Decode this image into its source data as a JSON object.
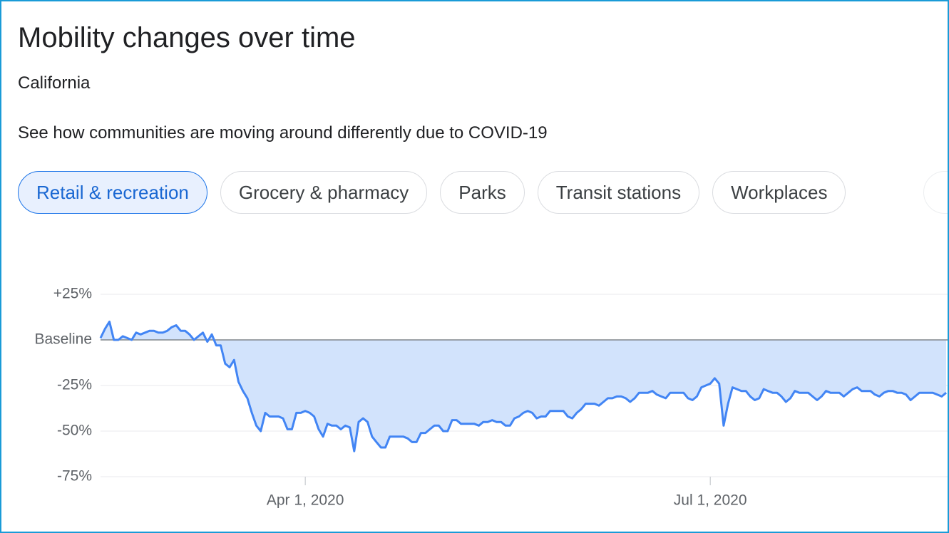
{
  "header": {
    "title": "Mobility changes over time",
    "subtitle": "California",
    "description": "See how communities are moving around differently due to COVID-19"
  },
  "tabs": [
    {
      "label": "Retail & recreation",
      "selected": true
    },
    {
      "label": "Grocery & pharmacy",
      "selected": false
    },
    {
      "label": "Parks",
      "selected": false
    },
    {
      "label": "Transit stations",
      "selected": false
    },
    {
      "label": "Workplaces",
      "selected": false
    }
  ],
  "chart_data": {
    "type": "line",
    "color": "#4285f4",
    "fill_color": "#d2e3fc",
    "x": [
      "2020-02-15",
      "2020-02-16",
      "2020-02-17",
      "2020-02-18",
      "2020-02-19",
      "2020-02-20",
      "2020-02-21",
      "2020-02-22",
      "2020-02-23",
      "2020-02-24",
      "2020-02-25",
      "2020-02-26",
      "2020-02-27",
      "2020-02-28",
      "2020-02-29",
      "2020-03-01",
      "2020-03-02",
      "2020-03-03",
      "2020-03-04",
      "2020-03-05",
      "2020-03-06",
      "2020-03-07",
      "2020-03-08",
      "2020-03-09",
      "2020-03-10",
      "2020-03-11",
      "2020-03-12",
      "2020-03-13",
      "2020-03-14",
      "2020-03-15",
      "2020-03-16",
      "2020-03-17",
      "2020-03-18",
      "2020-03-19",
      "2020-03-20",
      "2020-03-21",
      "2020-03-22",
      "2020-03-23",
      "2020-03-24",
      "2020-03-25",
      "2020-03-26",
      "2020-03-27",
      "2020-03-28",
      "2020-03-29",
      "2020-03-30",
      "2020-03-31",
      "2020-04-01",
      "2020-04-02",
      "2020-04-03",
      "2020-04-04",
      "2020-04-05",
      "2020-04-06",
      "2020-04-07",
      "2020-04-08",
      "2020-04-09",
      "2020-04-10",
      "2020-04-11",
      "2020-04-12",
      "2020-04-13",
      "2020-04-14",
      "2020-04-15",
      "2020-04-16",
      "2020-04-17",
      "2020-04-18",
      "2020-04-19",
      "2020-04-20",
      "2020-04-21",
      "2020-04-22",
      "2020-04-23",
      "2020-04-24",
      "2020-04-25",
      "2020-04-26",
      "2020-04-27",
      "2020-04-28",
      "2020-04-29",
      "2020-04-30",
      "2020-05-01",
      "2020-05-02",
      "2020-05-03",
      "2020-05-04",
      "2020-05-05",
      "2020-05-06",
      "2020-05-07",
      "2020-05-08",
      "2020-05-09",
      "2020-05-10",
      "2020-05-11",
      "2020-05-12",
      "2020-05-13",
      "2020-05-14",
      "2020-05-15",
      "2020-05-16",
      "2020-05-17",
      "2020-05-18",
      "2020-05-19",
      "2020-05-20",
      "2020-05-21",
      "2020-05-22",
      "2020-05-23",
      "2020-05-24",
      "2020-05-25",
      "2020-05-26",
      "2020-05-27",
      "2020-05-28",
      "2020-05-29",
      "2020-05-30",
      "2020-05-31",
      "2020-06-01",
      "2020-06-02",
      "2020-06-03",
      "2020-06-04",
      "2020-06-05",
      "2020-06-06",
      "2020-06-07",
      "2020-06-08",
      "2020-06-09",
      "2020-06-10",
      "2020-06-11",
      "2020-06-12",
      "2020-06-13",
      "2020-06-14",
      "2020-06-15",
      "2020-06-16",
      "2020-06-17",
      "2020-06-18",
      "2020-06-19",
      "2020-06-20",
      "2020-06-21",
      "2020-06-22",
      "2020-06-23",
      "2020-06-24",
      "2020-06-25",
      "2020-06-26",
      "2020-06-27",
      "2020-06-28",
      "2020-06-29",
      "2020-06-30",
      "2020-07-01",
      "2020-07-02",
      "2020-07-03",
      "2020-07-04",
      "2020-07-05",
      "2020-07-06",
      "2020-07-07",
      "2020-07-08",
      "2020-07-09",
      "2020-07-10",
      "2020-07-11",
      "2020-07-12",
      "2020-07-13",
      "2020-07-14",
      "2020-07-15",
      "2020-07-16",
      "2020-07-17",
      "2020-07-18",
      "2020-07-19",
      "2020-07-20",
      "2020-07-21",
      "2020-07-22",
      "2020-07-23",
      "2020-07-24",
      "2020-07-25",
      "2020-07-26",
      "2020-07-27",
      "2020-07-28",
      "2020-07-29",
      "2020-07-30",
      "2020-07-31",
      "2020-08-01",
      "2020-08-02",
      "2020-08-03",
      "2020-08-04",
      "2020-08-05",
      "2020-08-06",
      "2020-08-07",
      "2020-08-08",
      "2020-08-09",
      "2020-08-10",
      "2020-08-11",
      "2020-08-12",
      "2020-08-13",
      "2020-08-14",
      "2020-08-15",
      "2020-08-16",
      "2020-08-17",
      "2020-08-18",
      "2020-08-19",
      "2020-08-20",
      "2020-08-21",
      "2020-08-22",
      "2020-08-23"
    ],
    "values": [
      1,
      6,
      10,
      0,
      0,
      2,
      1,
      0,
      4,
      3,
      4,
      5,
      5,
      4,
      4,
      5,
      7,
      8,
      5,
      5,
      3,
      0,
      2,
      4,
      -1,
      3,
      -3,
      -3,
      -13,
      -15,
      -11,
      -23,
      -28,
      -32,
      -40,
      -47,
      -50,
      -40,
      -42,
      -42,
      -42,
      -43,
      -49,
      -49,
      -40,
      -40,
      -39,
      -40,
      -42,
      -49,
      -53,
      -46,
      -47,
      -47,
      -49,
      -47,
      -48,
      -61,
      -45,
      -43,
      -45,
      -53,
      -56,
      -59,
      -59,
      -53,
      -53,
      -53,
      -53,
      -54,
      -56,
      -56,
      -51,
      -51,
      -49,
      -47,
      -47,
      -50,
      -50,
      -44,
      -44,
      -46,
      -46,
      -46,
      -46,
      -47,
      -45,
      -45,
      -44,
      -45,
      -45,
      -47,
      -47,
      -43,
      -42,
      -40,
      -39,
      -40,
      -43,
      -42,
      -42,
      -39,
      -39,
      -39,
      -39,
      -42,
      -43,
      -40,
      -38,
      -35,
      -35,
      -35,
      -36,
      -34,
      -32,
      -32,
      -31,
      -31,
      -32,
      -34,
      -32,
      -29,
      -29,
      -29,
      -28,
      -30,
      -31,
      -32,
      -29,
      -29,
      -29,
      -29,
      -32,
      -33,
      -31,
      -26,
      -25,
      -24,
      -21,
      -24,
      -47,
      -35,
      -26,
      -27,
      -28,
      -28,
      -31,
      -33,
      -32,
      -27,
      -28,
      -29,
      -29,
      -31,
      -34,
      -32,
      -28,
      -29,
      -29,
      -29,
      -31,
      -33,
      -31,
      -28,
      -29,
      -29,
      -29,
      -31,
      -29,
      -27,
      -26,
      -28,
      -28,
      -28,
      -30,
      -31,
      -29,
      -28,
      -28,
      -29,
      -29,
      -30,
      -33,
      -31,
      -29,
      -29,
      -29,
      -29,
      -30,
      -31,
      -29
    ],
    "xlim": [
      "2020-02-15",
      "2020-08-23"
    ],
    "xticks": [
      {
        "value": "2020-04-01",
        "label": "Apr 1, 2020"
      },
      {
        "value": "2020-07-01",
        "label": "Jul 1, 2020"
      }
    ],
    "ylim": [
      -75,
      25
    ],
    "yticks": [
      {
        "value": 25,
        "label": "+25%"
      },
      {
        "value": 0,
        "label": "Baseline"
      },
      {
        "value": -25,
        "label": "-25%"
      },
      {
        "value": -50,
        "label": "-50%"
      },
      {
        "value": -75,
        "label": "-75%"
      }
    ],
    "grid": true
  }
}
